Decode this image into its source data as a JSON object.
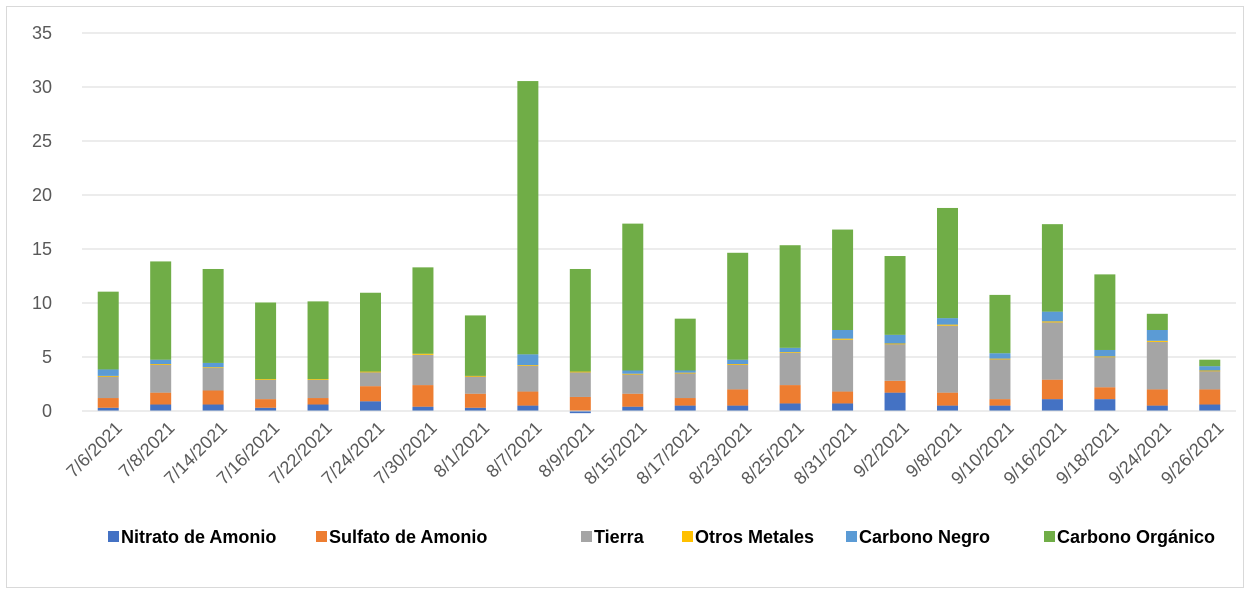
{
  "chart_data": {
    "type": "bar",
    "stacked": true,
    "categories": [
      "7/6/2021",
      "7/8/2021",
      "7/14/2021",
      "7/16/2021",
      "7/22/2021",
      "7/24/2021",
      "7/30/2021",
      "8/1/2021",
      "8/7/2021",
      "8/9/2021",
      "8/15/2021",
      "8/17/2021",
      "8/23/2021",
      "8/25/2021",
      "8/31/2021",
      "9/2/2021",
      "9/8/2021",
      "9/10/2021",
      "9/16/2021",
      "9/18/2021",
      "9/24/2021",
      "9/26/2021"
    ],
    "series": [
      {
        "name": "Nitrato de Amonio",
        "color": "#4472c4",
        "values": [
          0.3,
          0.6,
          0.6,
          0.3,
          0.6,
          0.9,
          0.4,
          0.3,
          0.5,
          -0.2,
          0.4,
          0.5,
          0.5,
          0.7,
          0.7,
          1.7,
          0.5,
          0.5,
          1.1,
          1.1,
          0.5,
          0.6
        ]
      },
      {
        "name": "Sulfato de Amonio",
        "color": "#ed7d31",
        "values": [
          0.9,
          1.1,
          1.3,
          0.8,
          0.6,
          1.4,
          2.0,
          1.3,
          1.3,
          1.3,
          1.2,
          0.7,
          1.5,
          1.7,
          1.1,
          1.1,
          1.2,
          0.6,
          1.8,
          1.1,
          1.5,
          1.4
        ]
      },
      {
        "name": "Tierra",
        "color": "#a5a5a5",
        "values": [
          2.0,
          2.6,
          2.1,
          1.8,
          1.7,
          1.3,
          2.8,
          1.6,
          2.4,
          2.3,
          1.8,
          2.3,
          2.3,
          3.0,
          4.8,
          3.4,
          6.2,
          3.7,
          5.3,
          2.8,
          4.4,
          1.7
        ]
      },
      {
        "name": "Otros Metales",
        "color": "#ffc000",
        "values": [
          0.05,
          0.05,
          0.05,
          0.05,
          0.05,
          0.05,
          0.1,
          0.05,
          0.05,
          0.05,
          0.05,
          0.05,
          0.05,
          0.05,
          0.1,
          0.05,
          0.1,
          0.05,
          0.1,
          0.05,
          0.1,
          0.05
        ]
      },
      {
        "name": "Carbono Negro",
        "color": "#5b9bd5",
        "values": [
          0.6,
          0.4,
          0.4,
          0.0,
          0.0,
          0.0,
          0.0,
          0.0,
          1.0,
          0.0,
          0.3,
          0.2,
          0.4,
          0.4,
          0.8,
          0.8,
          0.6,
          0.5,
          0.9,
          0.6,
          1.0,
          0.4
        ]
      },
      {
        "name": "Carbono Orgánico",
        "color": "#70ad47",
        "values": [
          7.2,
          9.1,
          8.7,
          7.1,
          7.2,
          7.3,
          8.0,
          5.6,
          25.3,
          9.5,
          13.6,
          4.8,
          9.9,
          9.5,
          9.3,
          7.3,
          10.2,
          5.4,
          8.1,
          7.0,
          1.5,
          0.6
        ]
      }
    ],
    "title": "",
    "xlabel": "",
    "ylabel": "",
    "ylim": [
      0,
      35
    ],
    "yticks": [
      "0",
      "5",
      "10",
      "15",
      "20",
      "25",
      "30",
      "35"
    ],
    "grid": true,
    "legend_position": "bottom"
  }
}
